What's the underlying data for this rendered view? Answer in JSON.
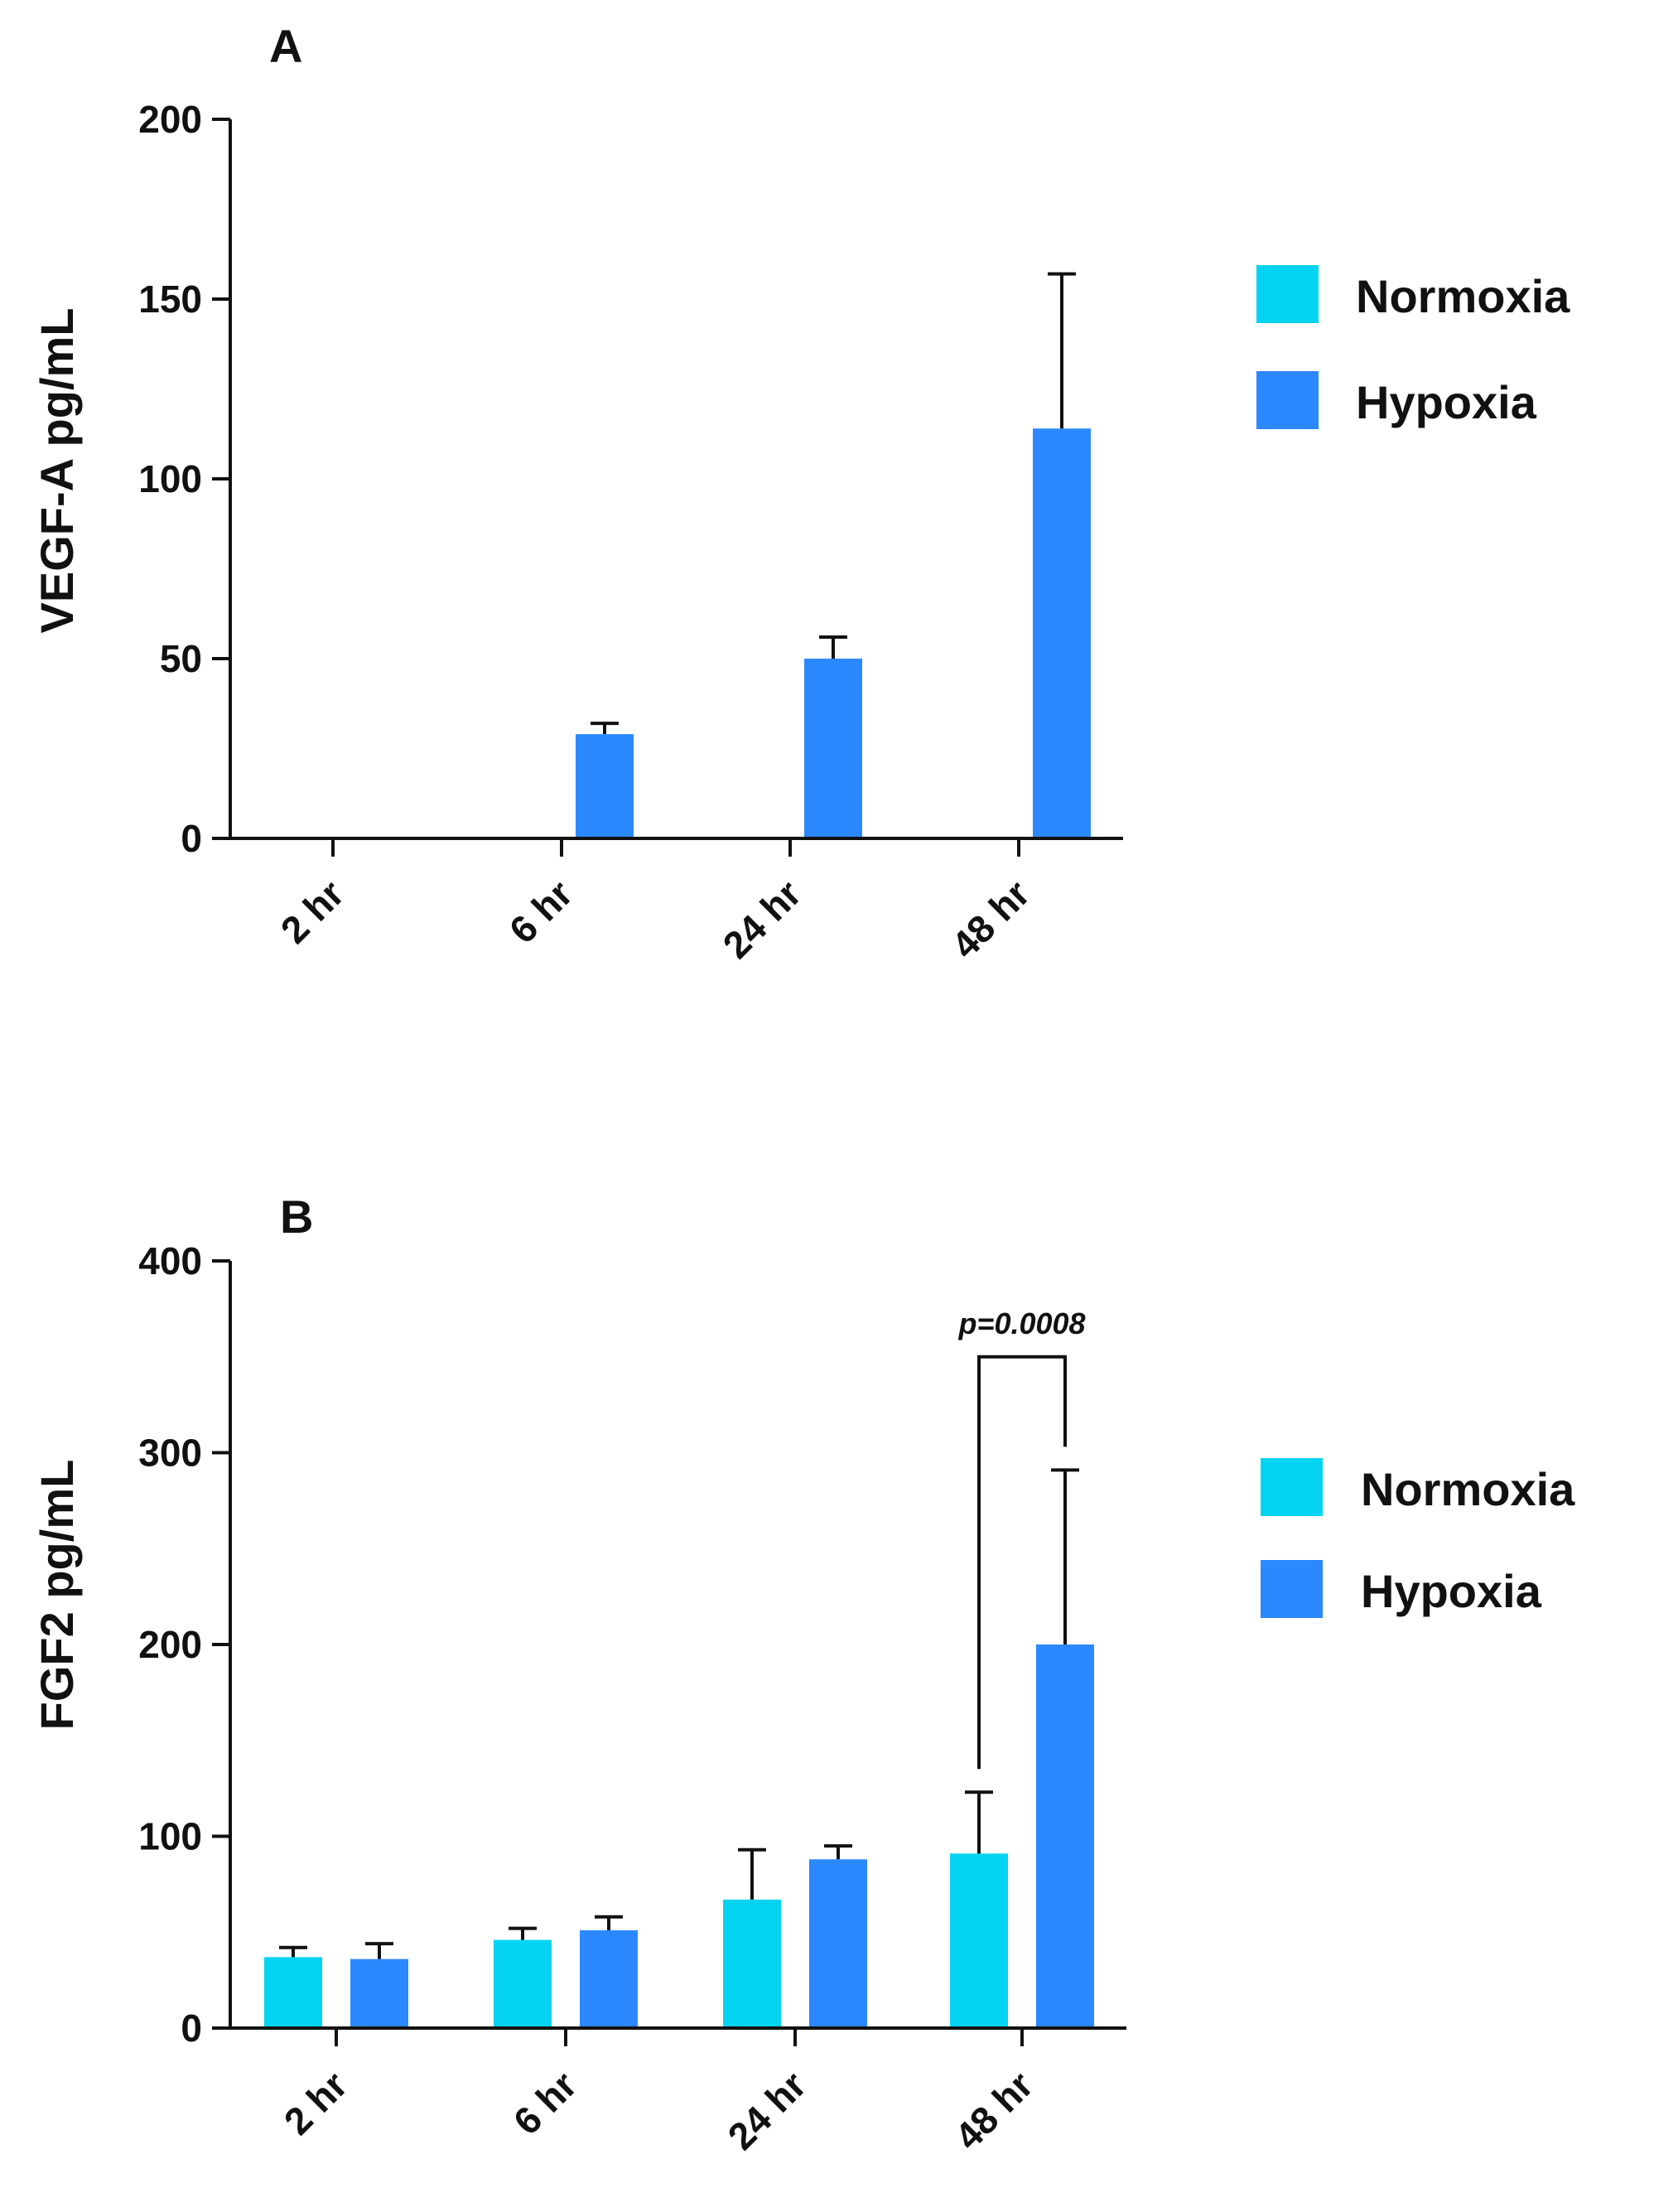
{
  "colors": {
    "normoxia": "#05d3f2",
    "hypoxia": "#2b88ff",
    "axis": "#111111"
  },
  "chart_data": [
    {
      "type": "bar",
      "panel_label": "A",
      "title": "",
      "xlabel": "",
      "ylabel": "VEGF-A pg/mL",
      "categories": [
        "2 hr",
        "6 hr",
        "24 hr",
        "48 hr"
      ],
      "ylim": [
        0,
        200
      ],
      "yticks": [
        0,
        50,
        100,
        150,
        200
      ],
      "ytick_labels": [
        "0",
        "50",
        "100",
        "150",
        "200"
      ],
      "series": [
        {
          "name": "Normoxia",
          "color": "#05d3f2",
          "values": [
            0,
            0,
            0,
            0
          ],
          "errors": [
            0,
            0,
            0,
            0
          ]
        },
        {
          "name": "Hypoxia",
          "color": "#2b88ff",
          "values": [
            0,
            29,
            50,
            114
          ],
          "errors": [
            0,
            3,
            6,
            43
          ]
        }
      ],
      "legend": {
        "placement": "right",
        "entries": [
          "Normoxia",
          "Hypoxia"
        ]
      },
      "annotations": []
    },
    {
      "type": "bar",
      "panel_label": "B",
      "title": "",
      "xlabel": "",
      "ylabel": "FGF2 pg/mL",
      "categories": [
        "2 hr",
        "6 hr",
        "24 hr",
        "48 hr"
      ],
      "ylim": [
        0,
        400
      ],
      "yticks": [
        0,
        100,
        200,
        300,
        400
      ],
      "ytick_labels": [
        "0",
        "100",
        "200",
        "300",
        "400"
      ],
      "series": [
        {
          "name": "Normoxia",
          "color": "#05d3f2",
          "values": [
            37,
            46,
            67,
            91
          ],
          "errors": [
            5,
            6,
            26,
            32
          ]
        },
        {
          "name": "Hypoxia",
          "color": "#2b88ff",
          "values": [
            36,
            51,
            88,
            200
          ],
          "errors": [
            8,
            7,
            7,
            91
          ]
        }
      ],
      "legend": {
        "placement": "right",
        "entries": [
          "Normoxia",
          "Hypoxia"
        ]
      },
      "annotations": [
        {
          "text": "p=0.0008",
          "category": "48 hr",
          "between": [
            "Normoxia",
            "Hypoxia"
          ],
          "bracket_y": 350
        }
      ]
    }
  ]
}
